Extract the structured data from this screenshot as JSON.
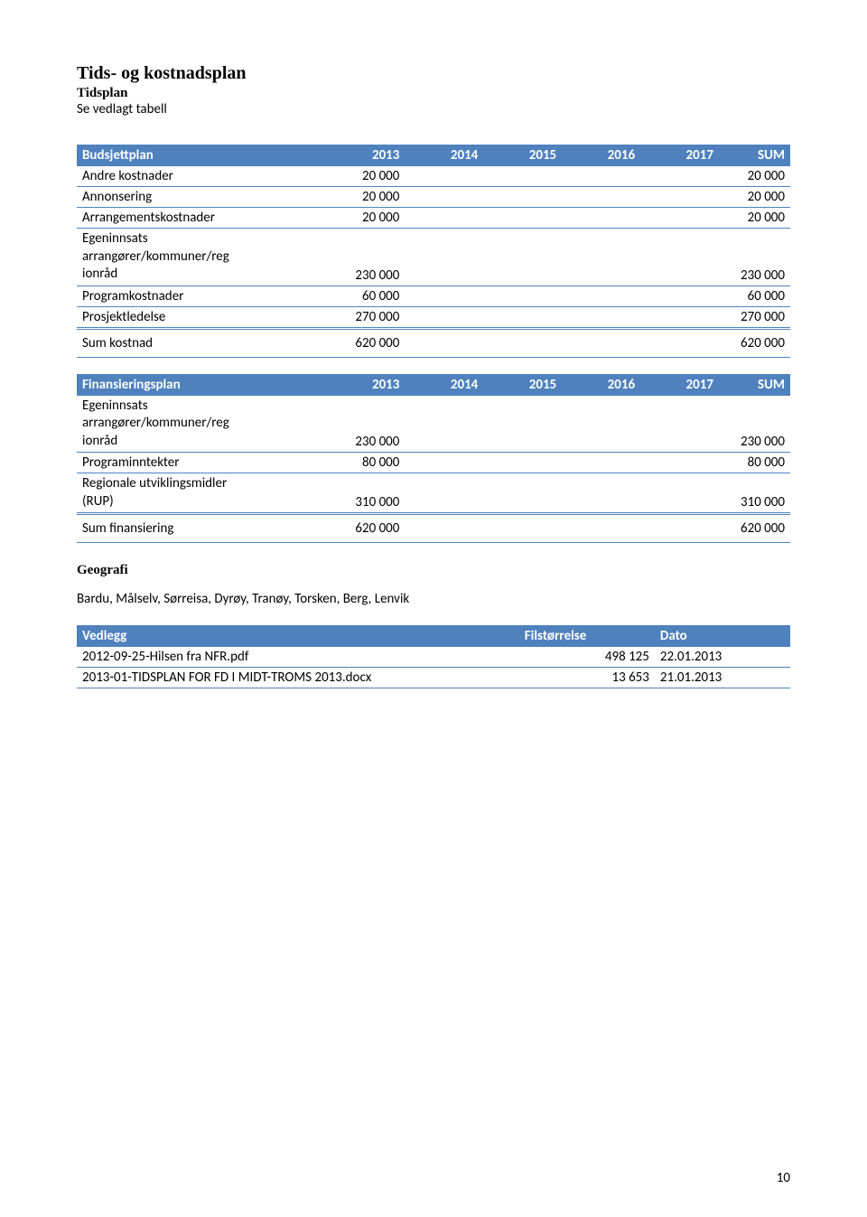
{
  "heading1": "Tids- og kostnadsplan",
  "heading2": "Tidsplan",
  "intro": "Se vedlagt tabell",
  "budsjett": {
    "header": [
      "Budsjettplan",
      "2013",
      "2014",
      "2015",
      "2016",
      "2017",
      "SUM"
    ],
    "rows": [
      {
        "label": "Andre kostnader",
        "c2013": "20 000",
        "sum": "20 000"
      },
      {
        "label": "Annonsering",
        "c2013": "20 000",
        "sum": "20 000"
      },
      {
        "label": "Arrangementskostnader",
        "c2013": "20 000",
        "sum": "20 000"
      },
      {
        "label": "Egeninnsats\narrangører/kommuner/reg\nionråd",
        "c2013": "230 000",
        "sum": "230 000"
      },
      {
        "label": "Programkostnader",
        "c2013": "60 000",
        "sum": "60 000"
      },
      {
        "label": "Prosjektledelse",
        "c2013": "270 000",
        "sum": "270 000"
      }
    ],
    "sumrow": {
      "label": "Sum kostnad",
      "c2013": "620 000",
      "sum": "620 000"
    }
  },
  "finansiering": {
    "header": [
      "Finansieringsplan",
      "2013",
      "2014",
      "2015",
      "2016",
      "2017",
      "SUM"
    ],
    "rows": [
      {
        "label": "Egeninnsats\narrangører/kommuner/reg\nionråd",
        "c2013": "230 000",
        "sum": "230 000"
      },
      {
        "label": "Programinntekter",
        "c2013": "80 000",
        "sum": "80 000"
      },
      {
        "label": "Regionale utviklingsmidler\n(RUP)",
        "c2013": "310 000",
        "sum": "310 000"
      }
    ],
    "sumrow": {
      "label": "Sum finansiering",
      "c2013": "620 000",
      "sum": "620 000"
    }
  },
  "geografi": {
    "heading": "Geografi",
    "text": "Bardu, Målselv, Sørreisa, Dyrøy, Tranøy, Torsken, Berg, Lenvik"
  },
  "vedlegg": {
    "header": [
      "Vedlegg",
      "Filstørrelse",
      "Dato"
    ],
    "rows": [
      {
        "name": "2012-09-25-Hilsen fra NFR.pdf",
        "size": "498 125",
        "date": "22.01.2013"
      },
      {
        "name": "2013-01-TIDSPLAN FOR FD I MIDT-TROMS 2013.docx",
        "size": "13 653",
        "date": "21.01.2013"
      }
    ]
  },
  "page_num": "10",
  "colwidths": {
    "main": [
      "31%",
      "15%",
      "11%",
      "11%",
      "11%",
      "11%",
      "10%"
    ],
    "vedlegg": [
      "62%",
      "19%",
      "19%"
    ]
  },
  "colors": {
    "header_bg": "#4f81bd",
    "header_fg": "#ffffff",
    "border": "#4f81bd",
    "text": "#000000",
    "bg": "#ffffff"
  }
}
